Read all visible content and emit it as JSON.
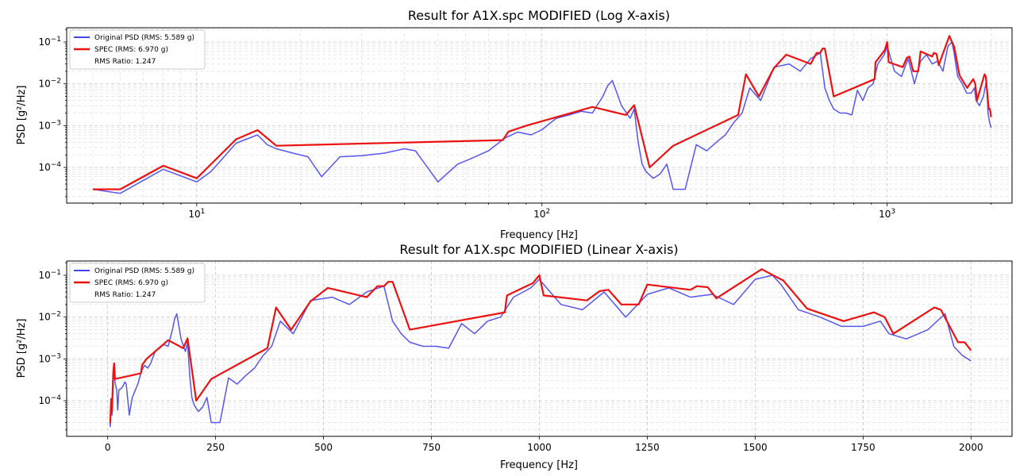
{
  "chart_data": [
    {
      "type": "line",
      "title": "Result for A1X.spc MODIFIED (Log X-axis)",
      "xlabel": "Frequency [Hz]",
      "ylabel": "PSD [g²/Hz]",
      "xscale": "log",
      "yscale": "log",
      "xlim": [
        4.2,
        2300
      ],
      "ylim": [
        1.4e-05,
        0.22
      ],
      "xticks": [
        {
          "value": 10,
          "base": "10",
          "exp": "1"
        },
        {
          "value": 100,
          "base": "10",
          "exp": "2"
        },
        {
          "value": 1000,
          "base": "10",
          "exp": "3"
        }
      ],
      "yticks": [
        {
          "value": 0.0001,
          "base": "10",
          "exp": "−4"
        },
        {
          "value": 0.001,
          "base": "10",
          "exp": "−3"
        },
        {
          "value": 0.01,
          "base": "10",
          "exp": "−2"
        },
        {
          "value": 0.1,
          "base": "10",
          "exp": "−1"
        }
      ],
      "grid": true,
      "legend_position": "top-left",
      "legend": [
        "Original PSD (RMS: 5.589 g)",
        "SPEC (RMS: 6.970 g)",
        "RMS Ratio: 1.247"
      ]
    },
    {
      "type": "line",
      "title": "Result for A1X.spc MODIFIED (Linear X-axis)",
      "xlabel": "Frequency [Hz]",
      "ylabel": "PSD [g²/Hz]",
      "xscale": "linear",
      "yscale": "log",
      "xlim": [
        -95,
        2095
      ],
      "ylim": [
        1.4e-05,
        0.22
      ],
      "xticks": [
        {
          "value": 0,
          "label": "0"
        },
        {
          "value": 250,
          "label": "250"
        },
        {
          "value": 500,
          "label": "500"
        },
        {
          "value": 750,
          "label": "750"
        },
        {
          "value": 1000,
          "label": "1000"
        },
        {
          "value": 1250,
          "label": "1250"
        },
        {
          "value": 1500,
          "label": "1500"
        },
        {
          "value": 1750,
          "label": "1750"
        },
        {
          "value": 2000,
          "label": "2000"
        }
      ],
      "yticks": [
        {
          "value": 0.0001,
          "base": "10",
          "exp": "−4"
        },
        {
          "value": 0.001,
          "base": "10",
          "exp": "−3"
        },
        {
          "value": 0.01,
          "base": "10",
          "exp": "−2"
        },
        {
          "value": 0.1,
          "base": "10",
          "exp": "−1"
        }
      ],
      "grid": true,
      "legend_position": "top-left",
      "legend": [
        "Original PSD (RMS: 5.589 g)",
        "SPEC (RMS: 6.970 g)",
        "RMS Ratio: 1.247"
      ]
    }
  ],
  "series": [
    {
      "name": "Original PSD (RMS: 5.589 g)",
      "color": "#4444ee",
      "x": [
        5,
        6,
        8,
        10,
        11,
        13,
        15,
        16,
        17,
        19,
        21,
        23,
        26,
        30,
        35,
        40,
        43,
        50,
        53,
        57,
        62,
        70,
        78,
        85,
        93,
        100,
        110,
        120,
        130,
        140,
        150,
        155,
        160,
        170,
        180,
        185,
        190,
        195,
        200,
        210,
        220,
        230,
        240,
        260,
        280,
        300,
        320,
        340,
        360,
        380,
        400,
        430,
        470,
        520,
        560,
        600,
        640,
        660,
        680,
        700,
        730,
        760,
        790,
        820,
        850,
        880,
        910,
        940,
        980,
        1000,
        1050,
        1100,
        1150,
        1200,
        1250,
        1300,
        1350,
        1400,
        1450,
        1500,
        1540,
        1560,
        1600,
        1650,
        1700,
        1750,
        1790,
        1810,
        1850,
        1900,
        1940,
        1960,
        1980,
        2000
      ],
      "y": [
        3e-05,
        2.4e-05,
        9e-05,
        4.5e-05,
        8e-05,
        0.00038,
        0.0006,
        0.00035,
        0.00028,
        0.00022,
        0.00018,
        6e-05,
        0.00018,
        0.00019,
        0.00022,
        0.00028,
        0.00025,
        4.5e-05,
        7e-05,
        0.00012,
        0.00016,
        0.00025,
        0.0005,
        0.0007,
        0.0006,
        0.0008,
        0.0015,
        0.0018,
        0.0022,
        0.002,
        0.005,
        0.009,
        0.012,
        0.003,
        0.0015,
        0.0025,
        0.0004,
        0.00012,
        8e-05,
        5.5e-05,
        7e-05,
        0.00012,
        3e-05,
        3e-05,
        0.00035,
        0.00025,
        0.0004,
        0.0006,
        0.0012,
        0.002,
        0.008,
        0.004,
        0.025,
        0.03,
        0.02,
        0.04,
        0.055,
        0.008,
        0.004,
        0.0025,
        0.002,
        0.002,
        0.0018,
        0.007,
        0.004,
        0.008,
        0.01,
        0.03,
        0.05,
        0.08,
        0.02,
        0.015,
        0.04,
        0.01,
        0.035,
        0.05,
        0.03,
        0.035,
        0.02,
        0.08,
        0.1,
        0.06,
        0.015,
        0.01,
        0.006,
        0.006,
        0.008,
        0.004,
        0.003,
        0.005,
        0.012,
        0.002,
        0.0012,
        0.0009
      ]
    },
    {
      "name": "SPEC (RMS: 6.970 g)",
      "color": "#ee1111",
      "x": [
        5,
        6,
        8,
        10,
        11,
        13,
        15,
        17,
        77,
        80,
        90,
        140,
        175,
        185,
        205,
        240,
        370,
        390,
        425,
        470,
        510,
        600,
        625,
        640,
        650,
        660,
        700,
        920,
        925,
        985,
        1000,
        1010,
        1110,
        1140,
        1160,
        1190,
        1230,
        1250,
        1350,
        1365,
        1390,
        1410,
        1515,
        1565,
        1620,
        1705,
        1775,
        1800,
        1820,
        1915,
        1930,
        1970,
        1985,
        2000
      ],
      "y": [
        3e-05,
        3e-05,
        0.00011,
        5.5e-05,
        0.00012,
        0.00047,
        0.00078,
        0.00033,
        0.00045,
        0.00072,
        0.001,
        0.0028,
        0.0018,
        0.0031,
        0.0001,
        0.00033,
        0.0018,
        0.017,
        0.005,
        0.024,
        0.05,
        0.03,
        0.055,
        0.055,
        0.07,
        0.07,
        0.005,
        0.013,
        0.033,
        0.065,
        0.1,
        0.033,
        0.025,
        0.042,
        0.045,
        0.02,
        0.02,
        0.06,
        0.045,
        0.055,
        0.052,
        0.028,
        0.14,
        0.075,
        0.016,
        0.008,
        0.013,
        0.01,
        0.004,
        0.017,
        0.015,
        0.0025,
        0.0025,
        0.0016
      ]
    }
  ]
}
